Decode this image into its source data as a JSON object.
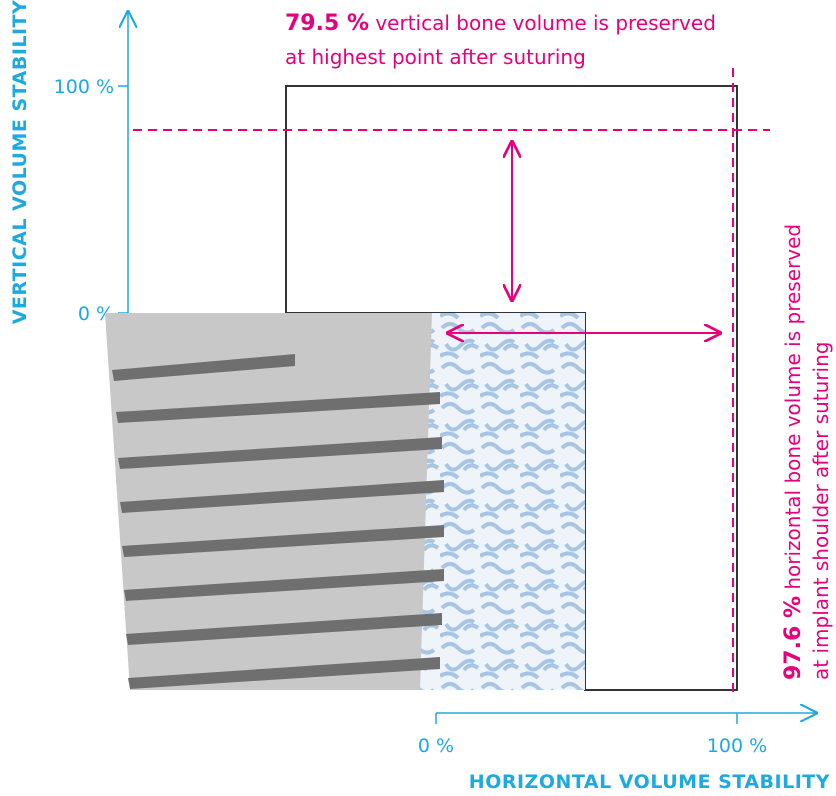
{
  "y_axis": {
    "label": "VERTICAL VOLUME STABILITY",
    "ticks": [
      "100 %",
      "0 %"
    ]
  },
  "x_axis": {
    "label": "HORIZONTAL VOLUME STABILITY",
    "ticks": [
      "0 %",
      "100 %"
    ]
  },
  "annotations": [
    {
      "value": "79.5 %",
      "text": "vertical bone volume is preserved",
      "line2": "at highest point after suturing"
    },
    {
      "value": "97.6 %",
      "text": "horizontal bone volume is preserved",
      "line2": "at implant shoulder after suturing"
    }
  ]
}
